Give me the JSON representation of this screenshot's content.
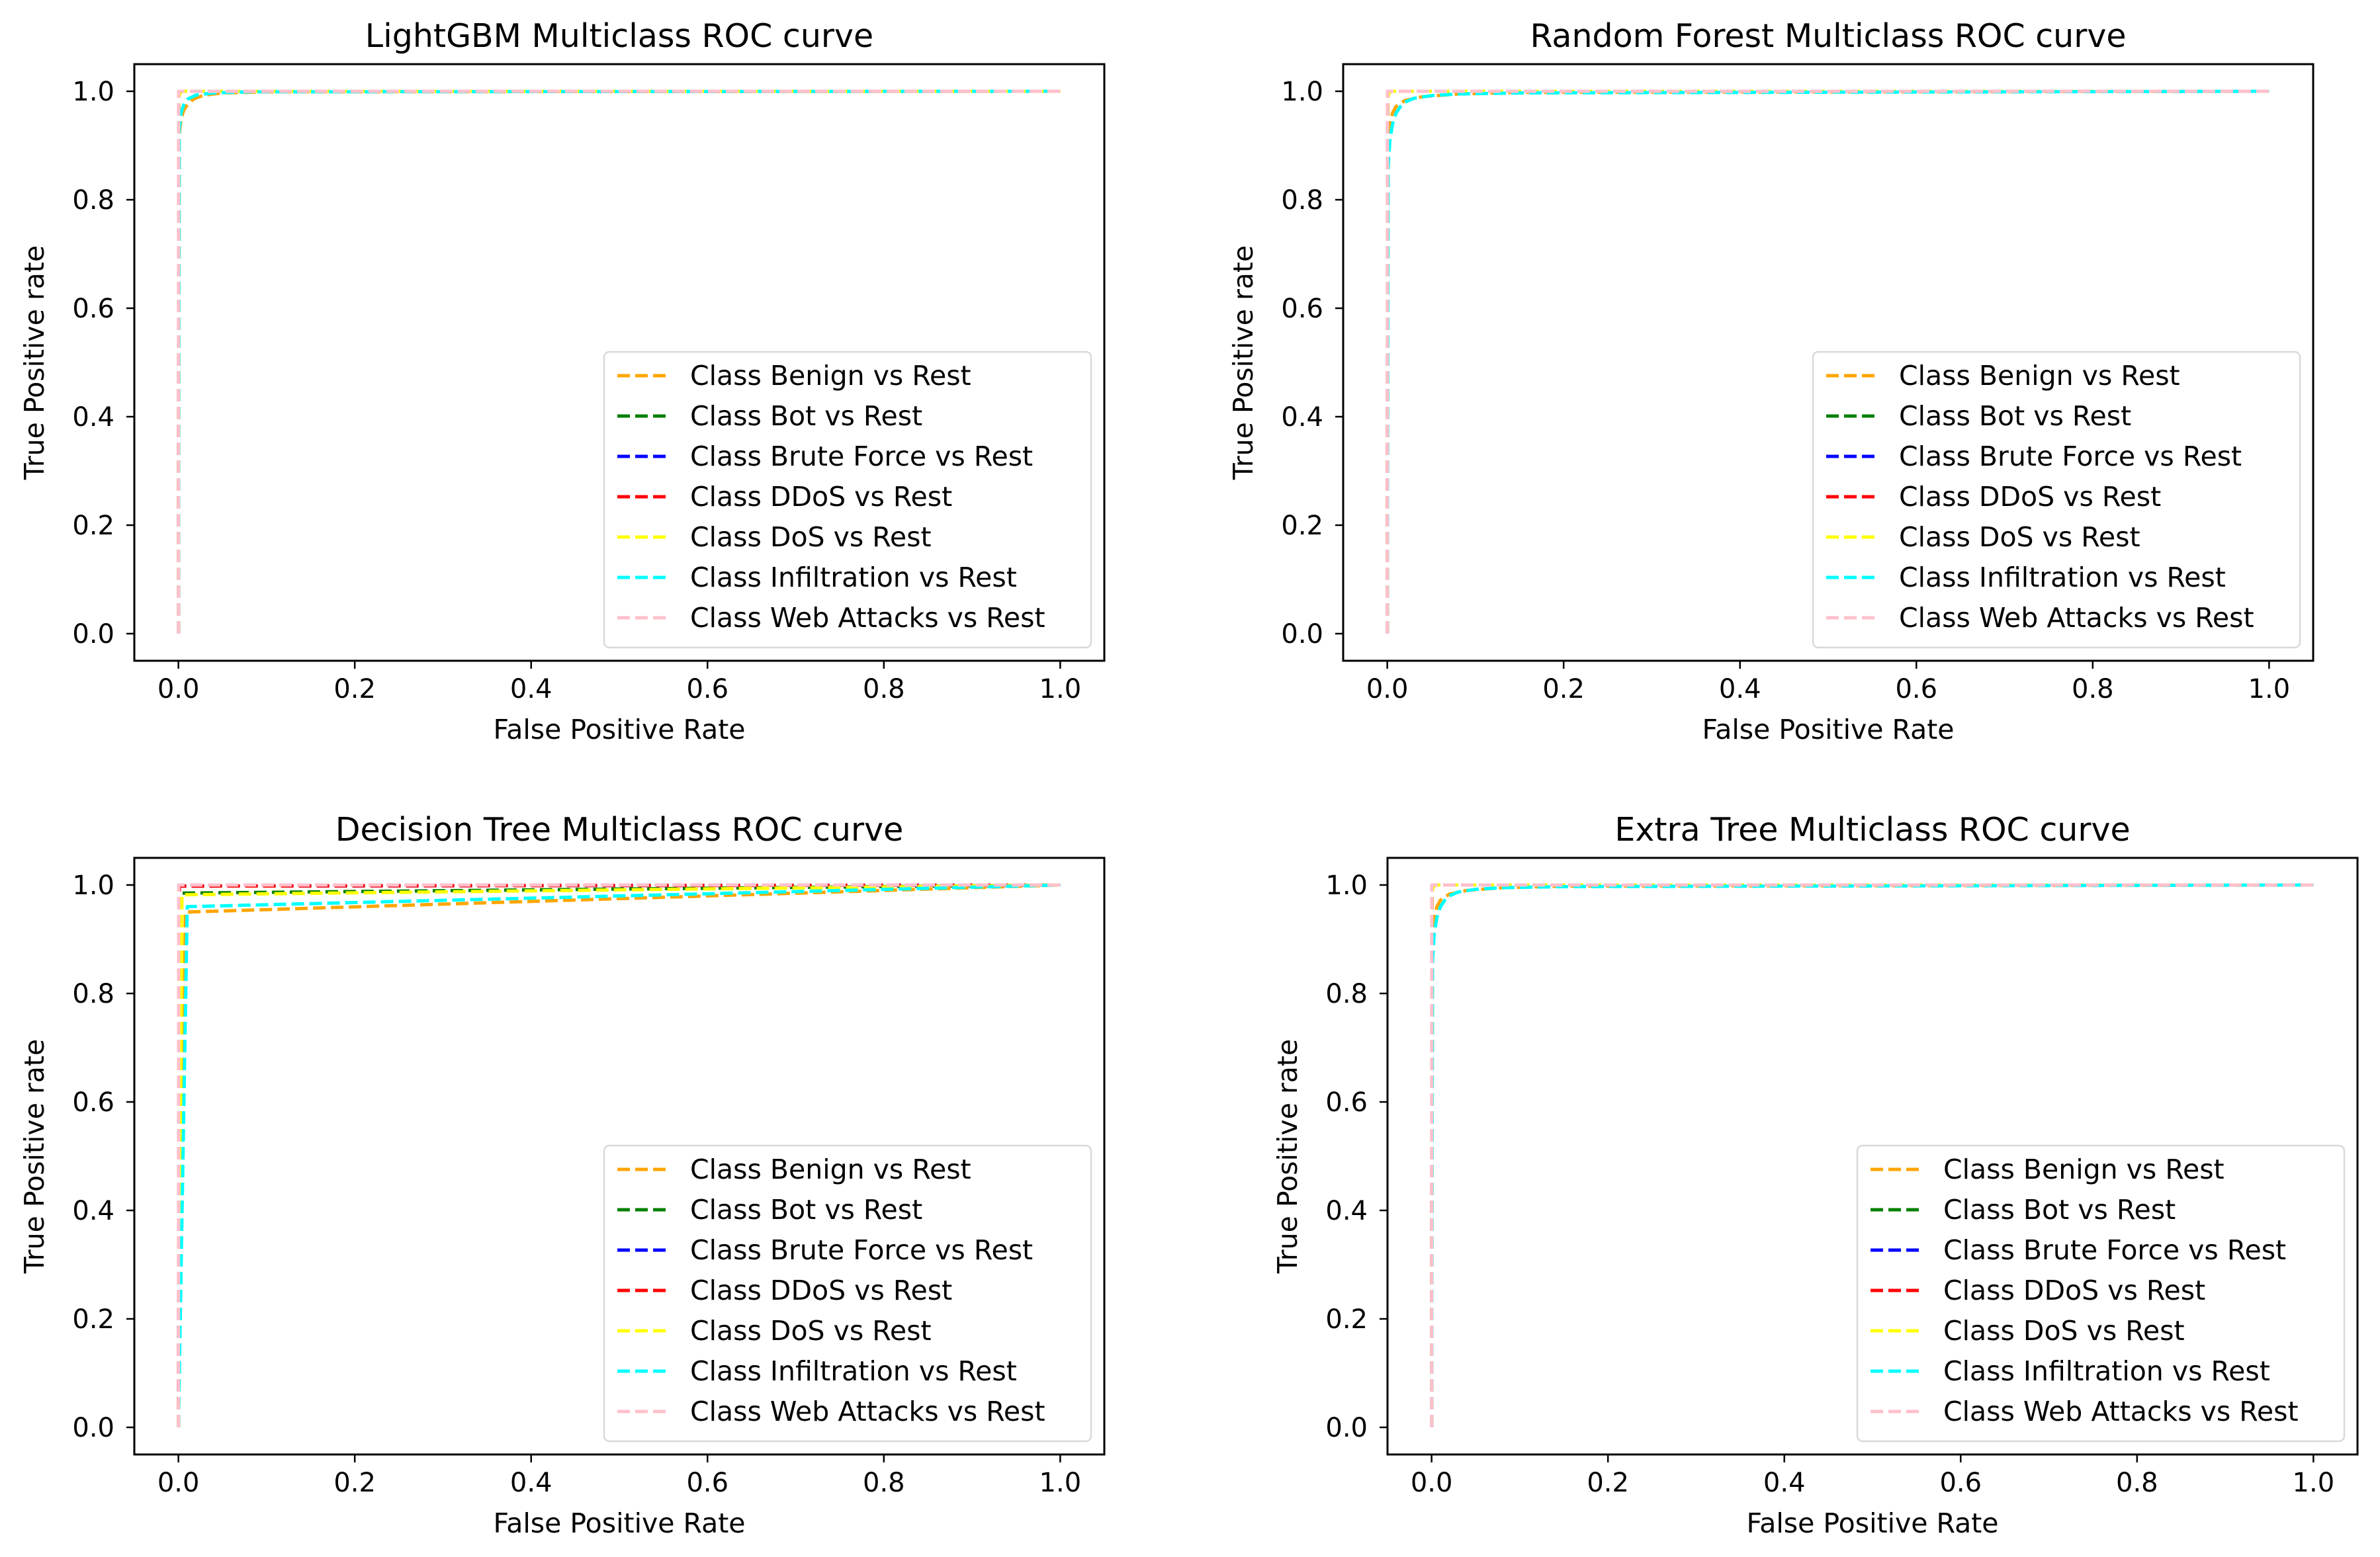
{
  "colors": {
    "Class Benign vs Rest": "#ffa500",
    "Class Bot vs Rest": "#008000",
    "Class Brute Force vs Rest": "#0000ff",
    "Class DDoS vs Rest": "#ff0000",
    "Class DoS vs Rest": "#ffff00",
    "Class Infiltration vs Rest": "#00ffff",
    "Class Web Attacks vs Rest": "#ffc0cb"
  },
  "chart_data": [
    {
      "type": "line",
      "title": "LightGBM Multiclass ROC curve",
      "xlabel": "False Positive Rate",
      "ylabel": "True Positive rate",
      "xlim": [
        -0.05,
        1.05
      ],
      "ylim": [
        -0.05,
        1.05
      ],
      "xticks": [
        0.0,
        0.2,
        0.4,
        0.6,
        0.8,
        1.0
      ],
      "yticks": [
        0.0,
        0.2,
        0.4,
        0.6,
        0.8,
        1.0
      ],
      "tick_labels": [
        "0.0",
        "0.2",
        "0.4",
        "0.6",
        "0.8",
        "1.0"
      ],
      "grid": false,
      "legend_position": "lower-right",
      "series": [
        {
          "name": "Class Benign vs Rest",
          "x": [
            0,
            0.001,
            0.003,
            0.006,
            0.01,
            0.015,
            0.02,
            0.03,
            0.05,
            0.1,
            1.0
          ],
          "y": [
            0,
            0.92,
            0.95,
            0.965,
            0.975,
            0.983,
            0.988,
            0.993,
            0.997,
            0.999,
            1.0
          ]
        },
        {
          "name": "Class Bot vs Rest",
          "x": [
            0,
            0.0005,
            0.002,
            0.005,
            1.0
          ],
          "y": [
            0,
            0.99,
            0.997,
            1.0,
            1.0
          ]
        },
        {
          "name": "Class Brute Force vs Rest",
          "x": [
            0,
            0.0005,
            0.002,
            1.0
          ],
          "y": [
            0,
            0.995,
            1.0,
            1.0
          ]
        },
        {
          "name": "Class DDoS vs Rest",
          "x": [
            0,
            0.0005,
            0.002,
            1.0
          ],
          "y": [
            0,
            0.995,
            1.0,
            1.0
          ]
        },
        {
          "name": "Class DoS vs Rest",
          "x": [
            0,
            0.0005,
            0.002,
            0.005,
            1.0
          ],
          "y": [
            0,
            0.99,
            0.997,
            1.0,
            1.0
          ]
        },
        {
          "name": "Class Infiltration vs Rest",
          "x": [
            0,
            0.001,
            0.003,
            0.006,
            0.01,
            0.02,
            0.04,
            0.08,
            1.0
          ],
          "y": [
            0,
            0.93,
            0.96,
            0.975,
            0.985,
            0.993,
            0.997,
            0.999,
            1.0
          ]
        },
        {
          "name": "Class Web Attacks vs Rest",
          "x": [
            0,
            0.0002,
            0.001,
            1.0
          ],
          "y": [
            0,
            1.0,
            1.0,
            1.0
          ]
        }
      ]
    },
    {
      "type": "line",
      "title": "Random Forest Multiclass ROC curve",
      "xlabel": "False Positive Rate",
      "ylabel": "True Positive rate",
      "xlim": [
        -0.05,
        1.05
      ],
      "ylim": [
        -0.05,
        1.05
      ],
      "xticks": [
        0.0,
        0.2,
        0.4,
        0.6,
        0.8,
        1.0
      ],
      "yticks": [
        0.0,
        0.2,
        0.4,
        0.6,
        0.8,
        1.0
      ],
      "tick_labels": [
        "0.0",
        "0.2",
        "0.4",
        "0.6",
        "0.8",
        "1.0"
      ],
      "grid": false,
      "legend_position": "lower-right",
      "series": [
        {
          "name": "Class Benign vs Rest",
          "x": [
            0,
            0.001,
            0.003,
            0.006,
            0.01,
            0.02,
            0.04,
            0.08,
            0.15,
            1.0
          ],
          "y": [
            0,
            0.9,
            0.94,
            0.96,
            0.972,
            0.983,
            0.99,
            0.995,
            0.998,
            1.0
          ]
        },
        {
          "name": "Class Bot vs Rest",
          "x": [
            0,
            0.0005,
            0.002,
            0.005,
            1.0
          ],
          "y": [
            0,
            0.99,
            0.997,
            1.0,
            1.0
          ]
        },
        {
          "name": "Class Brute Force vs Rest",
          "x": [
            0,
            0.0005,
            0.002,
            1.0
          ],
          "y": [
            0,
            0.995,
            1.0,
            1.0
          ]
        },
        {
          "name": "Class DDoS vs Rest",
          "x": [
            0,
            0.0005,
            0.002,
            1.0
          ],
          "y": [
            0,
            0.995,
            1.0,
            1.0
          ]
        },
        {
          "name": "Class DoS vs Rest",
          "x": [
            0,
            0.0005,
            0.002,
            0.005,
            1.0
          ],
          "y": [
            0,
            0.99,
            0.997,
            1.0,
            1.0
          ]
        },
        {
          "name": "Class Infiltration vs Rest",
          "x": [
            0,
            0.001,
            0.003,
            0.006,
            0.01,
            0.015,
            0.02,
            0.03,
            0.05,
            0.08,
            0.15,
            1.0
          ],
          "y": [
            0,
            0.86,
            0.91,
            0.94,
            0.96,
            0.972,
            0.98,
            0.987,
            0.992,
            0.995,
            0.997,
            1.0
          ]
        },
        {
          "name": "Class Web Attacks vs Rest",
          "x": [
            0,
            0.0002,
            0.001,
            1.0
          ],
          "y": [
            0,
            1.0,
            1.0,
            1.0
          ]
        }
      ]
    },
    {
      "type": "line",
      "title": "Decision Tree Multiclass ROC curve",
      "xlabel": "False Positive Rate",
      "ylabel": "True Positive rate",
      "xlim": [
        -0.05,
        1.05
      ],
      "ylim": [
        -0.05,
        1.05
      ],
      "xticks": [
        0.0,
        0.2,
        0.4,
        0.6,
        0.8,
        1.0
      ],
      "yticks": [
        0.0,
        0.2,
        0.4,
        0.6,
        0.8,
        1.0
      ],
      "tick_labels": [
        "0.0",
        "0.2",
        "0.4",
        "0.6",
        "0.8",
        "1.0"
      ],
      "grid": false,
      "legend_position": "lower-right",
      "series": [
        {
          "name": "Class Benign vs Rest",
          "x": [
            0,
            0.008,
            1.0
          ],
          "y": [
            0,
            0.95,
            1.0
          ]
        },
        {
          "name": "Class Bot vs Rest",
          "x": [
            0,
            0.003,
            1.0
          ],
          "y": [
            0,
            0.985,
            1.0
          ]
        },
        {
          "name": "Class Brute Force vs Rest",
          "x": [
            0,
            0.001,
            1.0
          ],
          "y": [
            0,
            0.998,
            1.0
          ]
        },
        {
          "name": "Class DDoS vs Rest",
          "x": [
            0,
            0.001,
            1.0
          ],
          "y": [
            0,
            0.998,
            1.0
          ]
        },
        {
          "name": "Class DoS vs Rest",
          "x": [
            0,
            0.004,
            1.0
          ],
          "y": [
            0,
            0.982,
            1.0
          ]
        },
        {
          "name": "Class Infiltration vs Rest",
          "x": [
            0,
            0.01,
            1.0
          ],
          "y": [
            0,
            0.96,
            1.0
          ]
        },
        {
          "name": "Class Web Attacks vs Rest",
          "x": [
            0,
            0.0003,
            1.0
          ],
          "y": [
            0,
            1.0,
            1.0
          ]
        }
      ]
    },
    {
      "type": "line",
      "title": "Extra Tree Multiclass ROC curve",
      "xlabel": "False Positive Rate",
      "ylabel": "True Positive rate",
      "xlim": [
        -0.05,
        1.05
      ],
      "ylim": [
        -0.05,
        1.05
      ],
      "xticks": [
        0.0,
        0.2,
        0.4,
        0.6,
        0.8,
        1.0
      ],
      "yticks": [
        0.0,
        0.2,
        0.4,
        0.6,
        0.8,
        1.0
      ],
      "tick_labels": [
        "0.0",
        "0.2",
        "0.4",
        "0.6",
        "0.8",
        "1.0"
      ],
      "grid": false,
      "legend_position": "lower-right",
      "series": [
        {
          "name": "Class Benign vs Rest",
          "x": [
            0,
            0.001,
            0.003,
            0.006,
            0.01,
            0.02,
            0.04,
            0.08,
            0.15,
            1.0
          ],
          "y": [
            0,
            0.9,
            0.94,
            0.96,
            0.972,
            0.983,
            0.99,
            0.995,
            0.998,
            1.0
          ]
        },
        {
          "name": "Class Bot vs Rest",
          "x": [
            0,
            0.0005,
            0.002,
            0.005,
            1.0
          ],
          "y": [
            0,
            0.99,
            0.997,
            1.0,
            1.0
          ]
        },
        {
          "name": "Class Brute Force vs Rest",
          "x": [
            0,
            0.0005,
            0.002,
            1.0
          ],
          "y": [
            0,
            0.995,
            1.0,
            1.0
          ]
        },
        {
          "name": "Class DDoS vs Rest",
          "x": [
            0,
            0.0005,
            0.002,
            1.0
          ],
          "y": [
            0,
            0.995,
            1.0,
            1.0
          ]
        },
        {
          "name": "Class DoS vs Rest",
          "x": [
            0,
            0.0005,
            0.002,
            0.005,
            1.0
          ],
          "y": [
            0,
            0.99,
            0.997,
            1.0,
            1.0
          ]
        },
        {
          "name": "Class Infiltration vs Rest",
          "x": [
            0,
            0.001,
            0.003,
            0.006,
            0.01,
            0.015,
            0.02,
            0.03,
            0.05,
            0.08,
            0.15,
            1.0
          ],
          "y": [
            0,
            0.86,
            0.91,
            0.94,
            0.96,
            0.972,
            0.98,
            0.987,
            0.992,
            0.995,
            0.997,
            1.0
          ]
        },
        {
          "name": "Class Web Attacks vs Rest",
          "x": [
            0,
            0.0002,
            0.001,
            1.0
          ],
          "y": [
            0,
            1.0,
            1.0,
            1.0
          ]
        }
      ]
    }
  ]
}
